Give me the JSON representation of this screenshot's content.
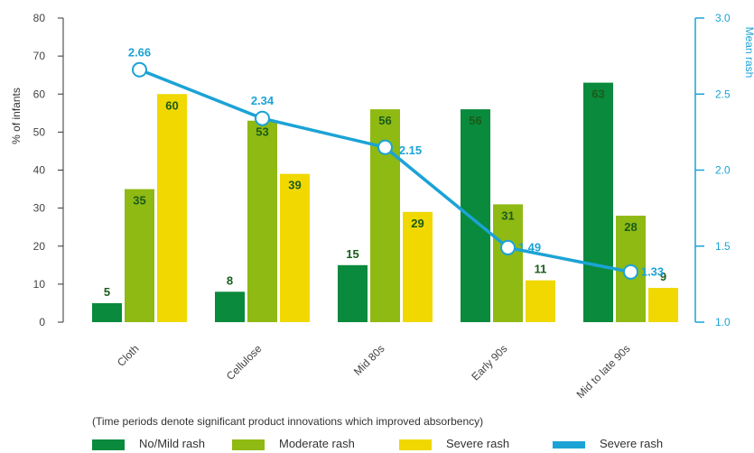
{
  "chart_data": {
    "type": "bar",
    "categories": [
      "Cloth",
      "Cellulose",
      "Mid 80s",
      "Early 90s",
      "Mid to late 90s"
    ],
    "series": [
      {
        "name": "No/Mild rash",
        "type": "bar",
        "color": "#0a8a3c",
        "values": [
          5,
          8,
          15,
          56,
          63
        ]
      },
      {
        "name": "Moderate rash",
        "type": "bar",
        "color": "#8fb913",
        "values": [
          35,
          53,
          56,
          31,
          28
        ]
      },
      {
        "name": "Severe rash",
        "type": "bar",
        "color": "#f0d800",
        "values": [
          60,
          39,
          29,
          11,
          9
        ]
      },
      {
        "name": "Severe rash",
        "type": "line",
        "axis": "right",
        "color": "#1ba3d6",
        "values": [
          2.66,
          2.34,
          2.15,
          1.49,
          1.33
        ]
      }
    ],
    "ylabel": "% of infants",
    "ylabel_right": "Mean rash",
    "ylim": [
      0,
      80
    ],
    "ylim_right": [
      1.0,
      3.0
    ],
    "yticks": [
      "0",
      "10",
      "20",
      "30",
      "40",
      "50",
      "60",
      "70",
      "80"
    ],
    "yticks_right": [
      "1.0",
      "1.5",
      "2.0",
      "2.5",
      "3.0"
    ],
    "bar_labels": [
      [
        "5",
        "8",
        "15",
        "56",
        "63"
      ],
      [
        "35",
        "53",
        "56",
        "31",
        "28"
      ],
      [
        "60",
        "39",
        "29",
        "11",
        "9"
      ]
    ],
    "line_labels": [
      "2.66",
      "2.34",
      "2.15",
      "1.49",
      "1.33"
    ],
    "grid": false,
    "legend_position": "bottom"
  },
  "note": "(Time periods denote significant product innovations which improved absorbency)",
  "legend": [
    {
      "label": "No/Mild rash",
      "color": "#0a8a3c"
    },
    {
      "label": "Moderate rash",
      "color": "#8fb913"
    },
    {
      "label": "Severe rash",
      "color": "#f0d800"
    },
    {
      "label": "Severe rash",
      "color": "#1ba3d6"
    }
  ],
  "colors": {
    "axis_left": "#333333",
    "axis_right": "#1ba3d6",
    "label_dark": "#1a5c1a",
    "tick_text": "#444444"
  }
}
